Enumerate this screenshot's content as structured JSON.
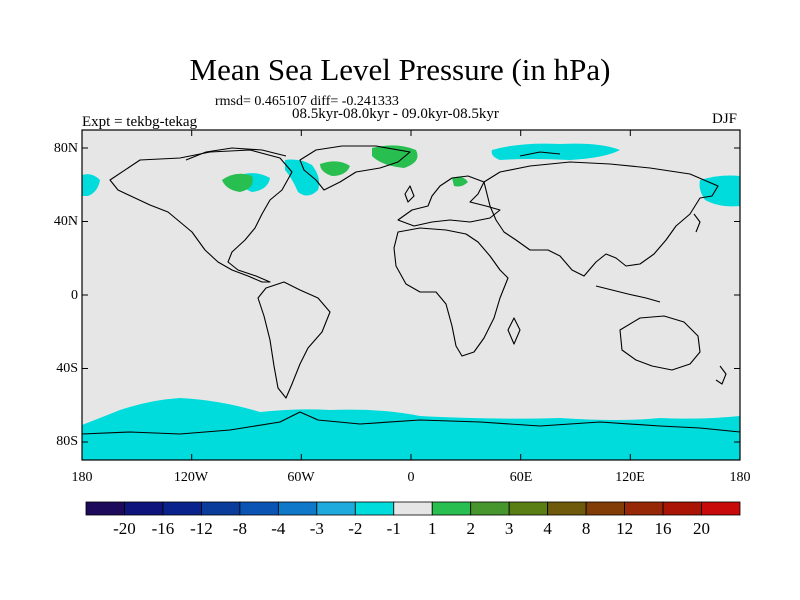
{
  "title": "Mean Sea Level Pressure (in hPa)",
  "stats": "rmsd= 0.465107 diff= -0.241333",
  "periods": "08.5kyr-08.0kyr - 09.0kyr-08.5kyr",
  "experiment": "Expt = tekbg-tekag",
  "season": "DJF",
  "map": {
    "projection": "cylindrical equidistant",
    "lon_range": [
      -180,
      180
    ],
    "lat_range": [
      -90,
      90
    ],
    "y_ticks": [
      "80N",
      "40N",
      "0",
      "40S",
      "80S"
    ],
    "x_ticks": [
      "180",
      "120W",
      "60W",
      "0",
      "60E",
      "120E",
      "180"
    ],
    "background_color": "#e6e6e6"
  },
  "colorbar": {
    "labels": [
      "-20",
      "-16",
      "-12",
      "-8",
      "-4",
      "-3",
      "-2",
      "-1",
      "1",
      "2",
      "3",
      "4",
      "8",
      "12",
      "16",
      "20"
    ],
    "colors": [
      "#1e0a5a",
      "#0f147d",
      "#0a238c",
      "#0a3c9b",
      "#0a55b4",
      "#0f78c8",
      "#1eaadc",
      "#00dcdc",
      "#e6e6e6",
      "#28be50",
      "#46962d",
      "#5a7d14",
      "#6e5a0a",
      "#823c05",
      "#962805",
      "#aa1405",
      "#c80a0a"
    ]
  },
  "fields": {
    "cyan_label": "-2 to -1 hPa",
    "green_label": "1 to 2 hPa"
  }
}
